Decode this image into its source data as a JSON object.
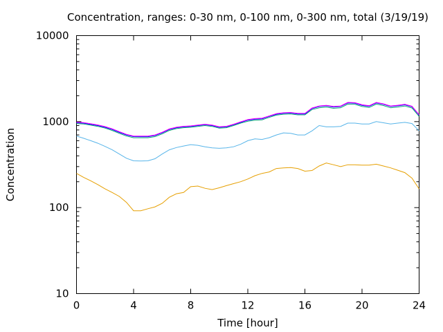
{
  "chart_data": {
    "type": "line",
    "title": "Concentration, ranges: 0-30 nm, 0-100 nm, 0-300 nm, total (3/19/19)",
    "xlabel": "Time [hour]",
    "ylabel": "Concentration",
    "xlim": [
      0,
      24
    ],
    "ylim": [
      10,
      10000
    ],
    "yscale": "log",
    "grid": false,
    "xticks": [
      0,
      4,
      8,
      12,
      16,
      20,
      24
    ],
    "xtick_labels": [
      "0",
      "4",
      "8",
      "12",
      "16",
      "20",
      "24"
    ],
    "yticks": [
      10,
      100,
      1000,
      10000
    ],
    "ytick_labels": [
      "10",
      "100",
      "1000",
      "10000"
    ],
    "x": [
      0,
      0.5,
      1,
      1.5,
      2,
      2.5,
      3,
      3.5,
      4,
      4.5,
      5,
      5.5,
      6,
      6.5,
      7,
      7.5,
      8,
      8.5,
      9,
      9.5,
      10,
      10.5,
      11,
      11.5,
      12,
      12.5,
      13,
      13.5,
      14,
      14.5,
      15,
      15.5,
      16,
      16.5,
      17,
      17.5,
      18,
      18.5,
      19,
      19.5,
      20,
      20.5,
      21,
      21.5,
      22,
      22.5,
      23,
      23.5,
      24
    ],
    "series": [
      {
        "color": "#e69f00",
        "values": [
          250,
          225,
          205,
          185,
          165,
          150,
          135,
          115,
          92,
          92,
          97,
          102,
          112,
          132,
          145,
          150,
          175,
          178,
          168,
          162,
          170,
          180,
          190,
          200,
          215,
          235,
          250,
          260,
          285,
          290,
          292,
          285,
          265,
          270,
          305,
          330,
          315,
          300,
          315,
          315,
          312,
          312,
          320,
          305,
          290,
          272,
          255,
          220,
          165
        ]
      },
      {
        "color": "#56b4e9",
        "values": [
          680,
          640,
          600,
          560,
          515,
          470,
          420,
          375,
          350,
          348,
          350,
          370,
          420,
          470,
          500,
          520,
          540,
          530,
          510,
          495,
          490,
          495,
          510,
          545,
          600,
          630,
          620,
          650,
          700,
          740,
          730,
          700,
          700,
          780,
          900,
          870,
          870,
          880,
          960,
          960,
          940,
          940,
          1000,
          970,
          940,
          960,
          980,
          950,
          780
        ]
      },
      {
        "color": "#009e73",
        "values": [
          950,
          940,
          910,
          880,
          840,
          790,
          730,
          680,
          650,
          650,
          650,
          670,
          720,
          790,
          830,
          850,
          860,
          880,
          900,
          880,
          840,
          850,
          900,
          960,
          1010,
          1040,
          1050,
          1120,
          1190,
          1220,
          1230,
          1200,
          1200,
          1380,
          1450,
          1480,
          1430,
          1450,
          1600,
          1590,
          1500,
          1460,
          1600,
          1540,
          1450,
          1480,
          1520,
          1440,
          1150
        ]
      },
      {
        "color": "#0000ff",
        "values": [
          970,
          960,
          930,
          900,
          860,
          810,
          750,
          700,
          670,
          668,
          668,
          690,
          740,
          810,
          850,
          870,
          880,
          900,
          920,
          900,
          860,
          870,
          920,
          980,
          1040,
          1070,
          1080,
          1150,
          1220,
          1250,
          1260,
          1230,
          1230,
          1420,
          1500,
          1530,
          1480,
          1500,
          1650,
          1640,
          1550,
          1510,
          1650,
          1590,
          1500,
          1530,
          1570,
          1490,
          1190
        ]
      },
      {
        "color": "#ff00ff",
        "values": [
          985,
          975,
          945,
          915,
          875,
          825,
          765,
          712,
          680,
          678,
          678,
          700,
          752,
          822,
          862,
          882,
          892,
          912,
          932,
          912,
          872,
          882,
          932,
          995,
          1055,
          1085,
          1095,
          1165,
          1238,
          1268,
          1278,
          1248,
          1248,
          1440,
          1520,
          1550,
          1500,
          1520,
          1675,
          1662,
          1572,
          1532,
          1675,
          1612,
          1522,
          1552,
          1592,
          1510,
          1205
        ]
      }
    ]
  }
}
